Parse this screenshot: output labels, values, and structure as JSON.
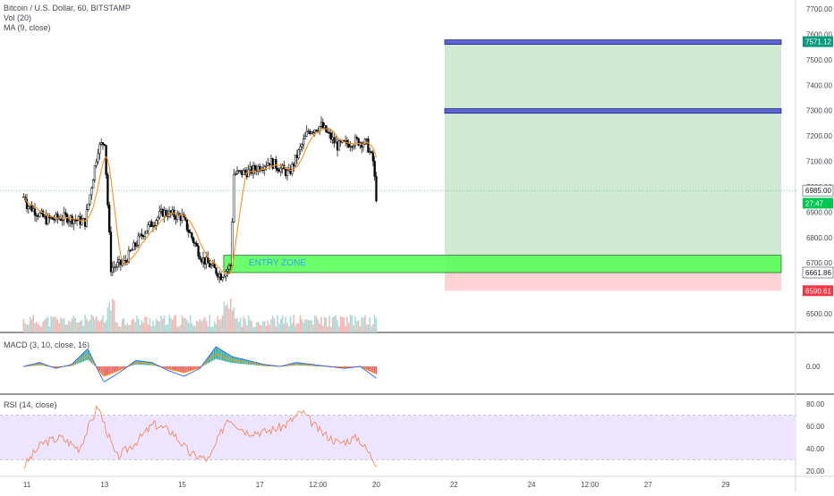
{
  "header": {
    "symbol_line": "Bitcoin / U.S. Dollar, 60, BITSTAMP",
    "vol_line": "Vol (20)",
    "ma_line": "MA (9, close)"
  },
  "macd_label": "MACD (3, 10, close, 16)",
  "rsi_label": "RSI (14, close)",
  "entry_zone_label": "ENTRY ZONE",
  "colors": {
    "up": "#26a69a",
    "down": "#ef5350",
    "candle": "#000000",
    "ma": "#f7931a",
    "profit_zone": "#c8e6c9",
    "stop_zone": "#ffcdd2",
    "entry_zone": "#5cff5c",
    "target_bar": "#5b63d6",
    "rsi_band": "#ede4ff",
    "rsi_line": "#f28b5b",
    "macd_line": "#2962ff",
    "signal_line": "#ff9800"
  },
  "chart_data": {
    "type": "candlestick",
    "price_axis": {
      "ticks": [
        7700,
        7600,
        7500,
        7400,
        7300,
        7200,
        7100,
        7000,
        6900,
        6800,
        6700,
        6600,
        6500
      ],
      "tick_labels": [
        "7700.00",
        "7600.00",
        "7500.00",
        "7400.00",
        "7300.00",
        "7200.00",
        "7100.00",
        "7000.00",
        "6900.00",
        "6800.00",
        "6700.00",
        "6600.00",
        "6500.00"
      ],
      "range": [
        6470,
        7730
      ]
    },
    "price_badges": [
      {
        "label": "7571.12",
        "value": 7571.12,
        "color": "#089981"
      },
      {
        "label": "6985.00",
        "value": 6985.0,
        "color": "#ffffff"
      },
      {
        "label": "27:47",
        "value": 6935.0,
        "color": "#00c853"
      },
      {
        "label": "6661.86",
        "value": 6661.86,
        "color": "#ffffff"
      },
      {
        "label": "6590.61",
        "value": 6590.61,
        "color": "#f23645"
      }
    ],
    "current_price": 6985.0,
    "x_axis": {
      "labels": [
        "11",
        "13",
        "15",
        "17",
        "12:00",
        "20",
        "22",
        "24",
        "12:00",
        "27",
        "29"
      ],
      "label_hours": [
        0,
        48,
        96,
        144,
        180,
        216,
        264,
        312,
        348,
        384,
        432
      ]
    },
    "ohlc_samples": [
      {
        "t": 0,
        "close": 6930
      },
      {
        "t": 12,
        "close": 6870
      },
      {
        "t": 24,
        "close": 6880
      },
      {
        "t": 36,
        "close": 6860
      },
      {
        "t": 44,
        "close": 7150
      },
      {
        "t": 48,
        "close": 7180
      },
      {
        "t": 52,
        "close": 6680
      },
      {
        "t": 60,
        "close": 6700
      },
      {
        "t": 72,
        "close": 6820
      },
      {
        "t": 84,
        "close": 6900
      },
      {
        "t": 96,
        "close": 6880
      },
      {
        "t": 108,
        "close": 6720
      },
      {
        "t": 120,
        "close": 6650
      },
      {
        "t": 126,
        "close": 6690
      },
      {
        "t": 128,
        "close": 7050
      },
      {
        "t": 138,
        "close": 7060
      },
      {
        "t": 150,
        "close": 7100
      },
      {
        "t": 162,
        "close": 7050
      },
      {
        "t": 174,
        "close": 7220
      },
      {
        "t": 182,
        "close": 7240
      },
      {
        "t": 192,
        "close": 7160
      },
      {
        "t": 204,
        "close": 7180
      },
      {
        "t": 210,
        "close": 7170
      },
      {
        "t": 214,
        "close": 7100
      },
      {
        "t": 216,
        "close": 6960
      }
    ],
    "trade_setup": {
      "entry_zone": [
        6661.86,
        6730
      ],
      "stop": 6590.61,
      "target_1": 7300,
      "target_2": 7571.12,
      "entry_line_hours": [
        126,
        436
      ]
    },
    "macd": {
      "zero_label": "0.00",
      "samples": [
        0.0,
        0.2,
        -0.1,
        0.1,
        0.9,
        -0.8,
        -0.3,
        0.3,
        0.2,
        -0.2,
        -0.5,
        -0.1,
        1.0,
        0.5,
        0.3,
        0.1,
        0.0,
        0.2,
        0.1,
        0.0,
        -0.1,
        0.0,
        -0.6
      ]
    },
    "rsi": {
      "ticks": [
        80,
        60,
        40,
        20
      ],
      "tick_labels": [
        "80.00",
        "60.00",
        "40.00",
        "20.00"
      ],
      "band": [
        30,
        70
      ],
      "samples": [
        24,
        45,
        50,
        40,
        78,
        32,
        45,
        62,
        55,
        35,
        30,
        68,
        55,
        55,
        60,
        73,
        55,
        45,
        50,
        27
      ]
    }
  }
}
